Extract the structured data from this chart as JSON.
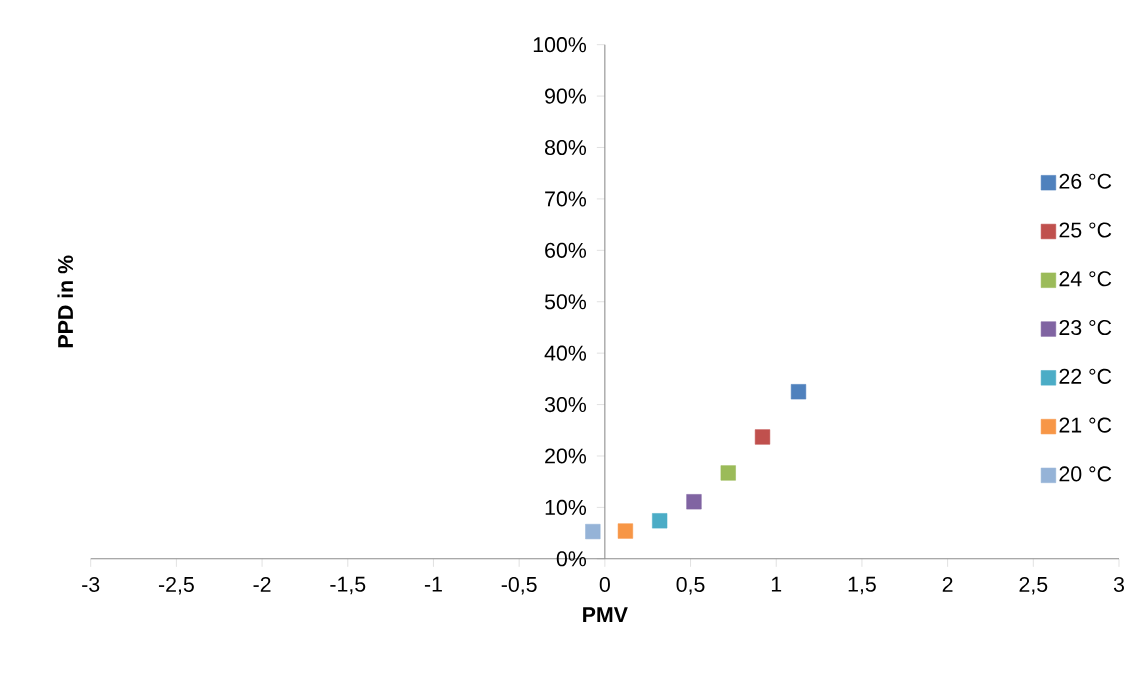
{
  "chart_data": {
    "type": "scatter",
    "xlabel": "PMV",
    "ylabel": "PPD in %",
    "xlim": [
      -3,
      3
    ],
    "ylim": [
      0,
      100
    ],
    "xticks": [
      -3,
      {
        "value": -2.5,
        "label": "-2,5"
      },
      -2,
      {
        "value": -1.5,
        "label": "-1,5"
      },
      -1,
      {
        "value": -0.5,
        "label": "-0,5"
      },
      0,
      {
        "value": 0.5,
        "label": "0,5"
      },
      1,
      {
        "value": 1.5,
        "label": "1,5"
      },
      2,
      {
        "value": 2.5,
        "label": "2,5"
      },
      3
    ],
    "yticks": [
      {
        "value": 0,
        "label": "0%"
      },
      {
        "value": 10,
        "label": "10%"
      },
      {
        "value": 20,
        "label": "20%"
      },
      {
        "value": 30,
        "label": "30%"
      },
      {
        "value": 40,
        "label": "40%"
      },
      {
        "value": 50,
        "label": "50%"
      },
      {
        "value": 60,
        "label": "60%"
      },
      {
        "value": 70,
        "label": "70%"
      },
      {
        "value": 80,
        "label": "80%"
      },
      {
        "value": 90,
        "label": "90%"
      },
      {
        "value": 100,
        "label": "100%"
      }
    ],
    "legend": "right",
    "marker": "square",
    "series": [
      {
        "name": "26 °C",
        "color": "#4f81bd",
        "x": [
          1.13
        ],
        "values": [
          32.5
        ]
      },
      {
        "name": "25 °C",
        "color": "#c0504d",
        "x": [
          0.92
        ],
        "values": [
          23.7
        ]
      },
      {
        "name": "24 °C",
        "color": "#9bbb59",
        "x": [
          0.72
        ],
        "values": [
          16.7
        ]
      },
      {
        "name": "23 °C",
        "color": "#8064a2",
        "x": [
          0.52
        ],
        "values": [
          11.1
        ]
      },
      {
        "name": "22 °C",
        "color": "#4bacc6",
        "x": [
          0.32
        ],
        "values": [
          7.4
        ]
      },
      {
        "name": "21 °C",
        "color": "#f79646",
        "x": [
          0.12
        ],
        "values": [
          5.4
        ]
      },
      {
        "name": "20 °C",
        "color": "#95b3d7",
        "x": [
          -0.07
        ],
        "values": [
          5.3
        ]
      }
    ]
  }
}
